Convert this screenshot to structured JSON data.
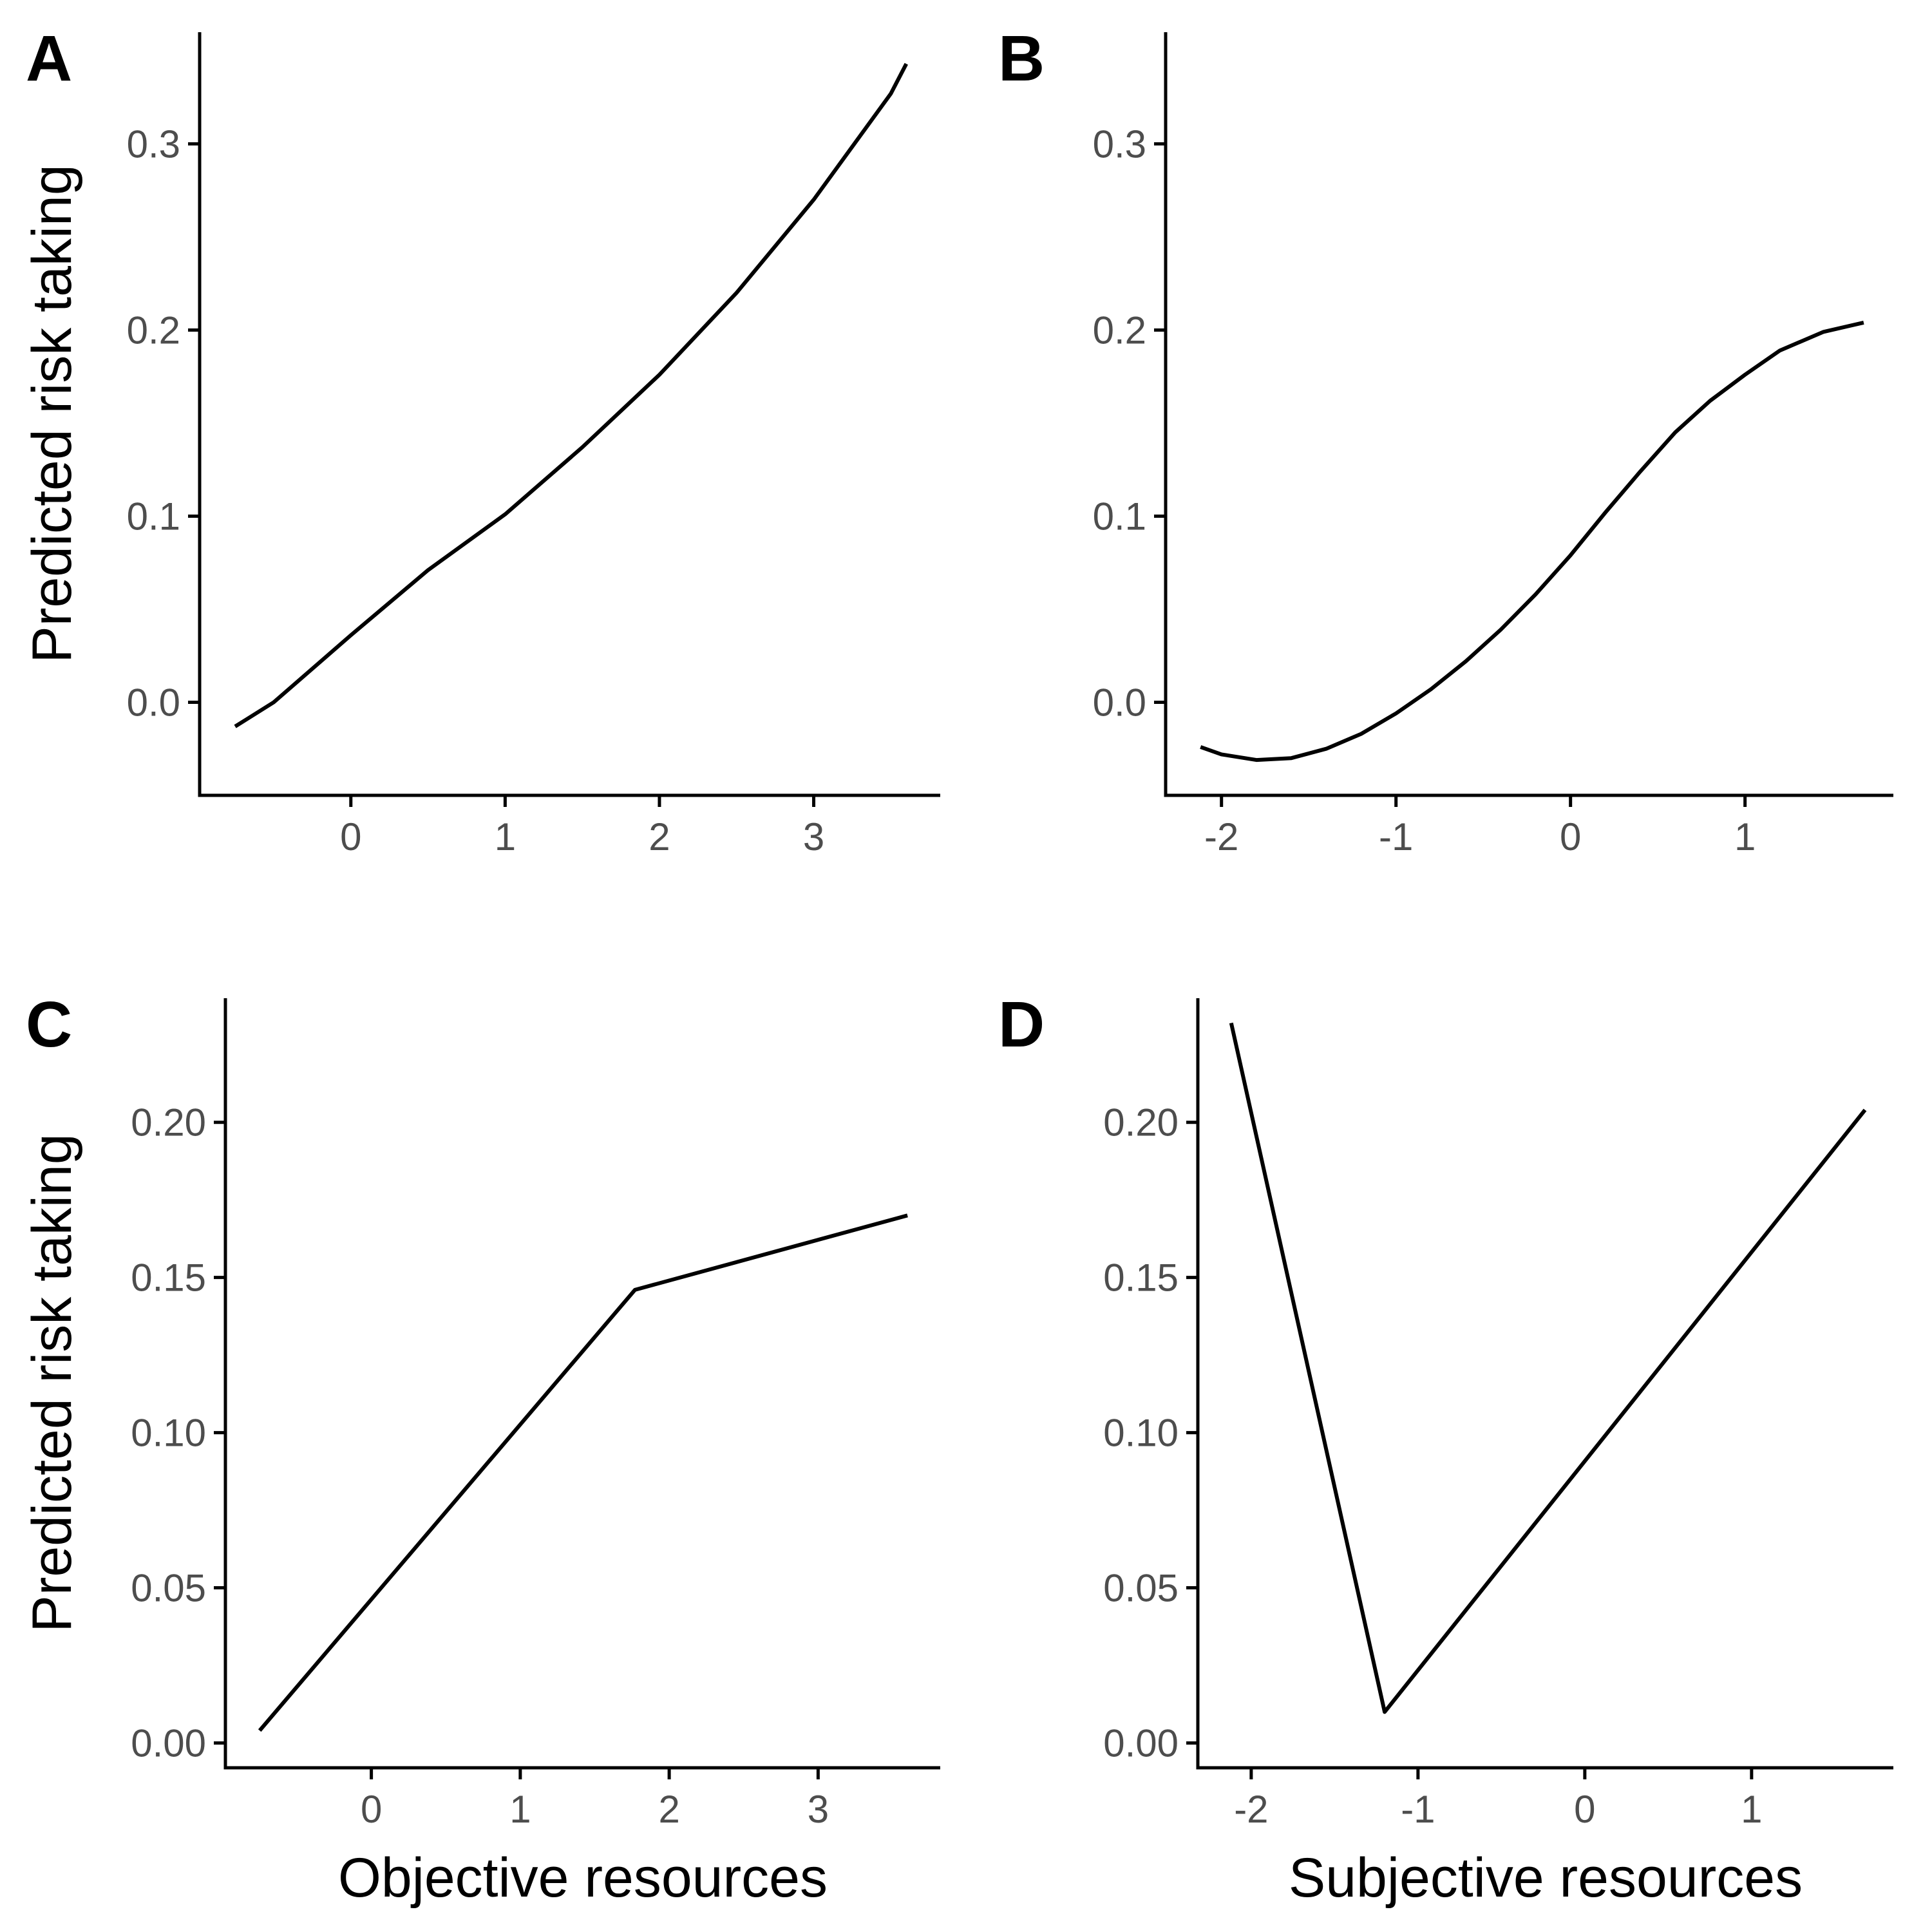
{
  "figure": {
    "background": "#ffffff",
    "line_color": "#000000",
    "tick_label_color": "#4d4d4d"
  },
  "chart_data": [
    {
      "panel": "A",
      "type": "line",
      "xlabel": "",
      "ylabel": "Predicted risk taking",
      "xlim": [
        -0.98,
        3.82
      ],
      "ylim": [
        -0.05,
        0.36
      ],
      "xticks": [
        "0",
        "1",
        "2",
        "3"
      ],
      "yticks": [
        "0.0",
        "0.1",
        "0.2",
        "0.3"
      ],
      "grid": false,
      "series": [
        {
          "x": [
            -0.75,
            -0.5,
            0.0,
            0.5,
            1.0,
            1.5,
            2.0,
            2.5,
            3.0,
            3.5,
            3.6
          ],
          "values": [
            -0.013,
            0.0,
            0.036,
            0.071,
            0.101,
            0.137,
            0.176,
            0.22,
            0.27,
            0.327,
            0.343
          ]
        }
      ]
    },
    {
      "panel": "B",
      "type": "line",
      "xlabel": "",
      "ylabel": "",
      "xlim": [
        -2.32,
        1.85
      ],
      "ylim": [
        -0.05,
        0.36
      ],
      "xticks": [
        "-2",
        "-1",
        "0",
        "1"
      ],
      "yticks": [
        "0.0",
        "0.1",
        "0.2",
        "0.3"
      ],
      "grid": false,
      "series": [
        {
          "x": [
            -2.12,
            -2.0,
            -1.8,
            -1.6,
            -1.4,
            -1.2,
            -1.0,
            -0.8,
            -0.6,
            -0.4,
            -0.2,
            0.0,
            0.2,
            0.4,
            0.6,
            0.8,
            1.0,
            1.2,
            1.45,
            1.68
          ],
          "values": [
            -0.024,
            -0.028,
            -0.031,
            -0.03,
            -0.025,
            -0.017,
            -0.006,
            0.007,
            0.022,
            0.039,
            0.058,
            0.079,
            0.102,
            0.124,
            0.145,
            0.162,
            0.176,
            0.189,
            0.199,
            0.204
          ]
        }
      ]
    },
    {
      "panel": "C",
      "type": "line",
      "xlabel": "Objective resources",
      "ylabel": "Predicted risk taking",
      "xlim": [
        -0.98,
        3.82
      ],
      "ylim": [
        -0.008,
        0.24
      ],
      "xticks": [
        "0",
        "1",
        "2",
        "3"
      ],
      "yticks": [
        "0.00",
        "0.05",
        "0.10",
        "0.15",
        "0.20"
      ],
      "grid": false,
      "series": [
        {
          "x": [
            -0.75,
            1.77,
            3.6
          ],
          "values": [
            0.004,
            0.146,
            0.17
          ]
        }
      ]
    },
    {
      "panel": "D",
      "type": "line",
      "xlabel": "Subjective resources",
      "ylabel": "",
      "xlim": [
        -2.32,
        1.85
      ],
      "ylim": [
        -0.008,
        0.24
      ],
      "xticks": [
        "-2",
        "-1",
        "0",
        "1"
      ],
      "yticks": [
        "0.00",
        "0.05",
        "0.10",
        "0.15",
        "0.20"
      ],
      "grid": false,
      "series": [
        {
          "x": [
            -2.12,
            -1.2,
            1.68
          ],
          "values": [
            0.232,
            0.01,
            0.204
          ]
        }
      ]
    }
  ]
}
